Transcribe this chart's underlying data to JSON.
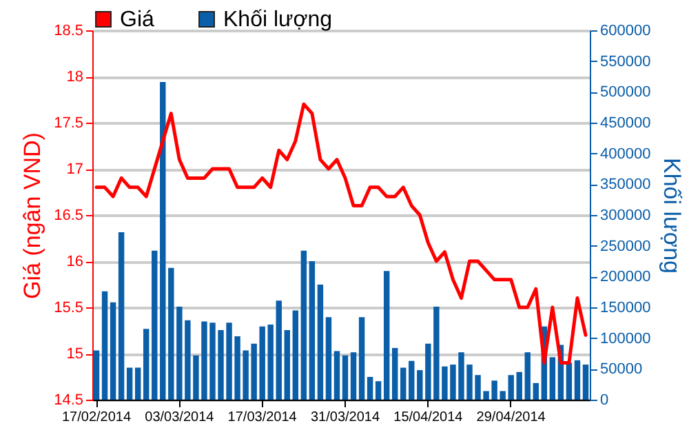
{
  "chart_data": {
    "type": "bar",
    "ylabel": "Giá (ngân VND)",
    "y2label": "Khối lượng",
    "categories": [
      "17/02/2014",
      null,
      null,
      null,
      null,
      null,
      null,
      null,
      null,
      null,
      "03/03/2014",
      null,
      null,
      null,
      null,
      null,
      null,
      null,
      null,
      null,
      "17/03/2014",
      null,
      null,
      null,
      null,
      null,
      null,
      null,
      null,
      null,
      "31/03/2014",
      null,
      null,
      null,
      null,
      null,
      null,
      null,
      null,
      null,
      "15/04/2014",
      null,
      null,
      null,
      null,
      null,
      null,
      null,
      null,
      null,
      "29/04/2014",
      null,
      null,
      null,
      null,
      null,
      null,
      null,
      null,
      null
    ],
    "series": [
      {
        "name": "Giá",
        "type": "line",
        "axis": "y",
        "color": "#ff0000",
        "values": [
          16.8,
          16.8,
          16.7,
          16.9,
          16.8,
          16.8,
          16.7,
          17.0,
          17.3,
          17.6,
          17.1,
          16.9,
          16.9,
          16.9,
          17.0,
          17.0,
          17.0,
          16.8,
          16.8,
          16.8,
          16.9,
          16.8,
          17.2,
          17.1,
          17.3,
          17.7,
          17.6,
          17.1,
          17.0,
          17.1,
          16.9,
          16.6,
          16.6,
          16.8,
          16.8,
          16.7,
          16.7,
          16.8,
          16.6,
          16.5,
          16.2,
          16.0,
          16.1,
          15.8,
          15.6,
          16.0,
          16.0,
          15.9,
          15.8,
          15.8,
          15.8,
          15.5,
          15.5,
          15.7,
          14.9,
          15.5,
          14.9,
          14.9,
          15.6,
          15.2
        ]
      },
      {
        "name": "Khối lượng",
        "axis": "y2",
        "color": "#0b5ea8",
        "values": [
          80000,
          176000,
          158000,
          272000,
          52000,
          52000,
          115000,
          242000,
          516000,
          214000,
          151000,
          129000,
          72000,
          127000,
          125000,
          113000,
          125000,
          103000,
          80000,
          91000,
          119000,
          122000,
          161000,
          113000,
          145000,
          242000,
          225000,
          187000,
          134000,
          79000,
          72000,
          77000,
          134000,
          37000,
          30000,
          209000,
          84000,
          52000,
          63000,
          48000,
          91000,
          151000,
          54000,
          57000,
          77000,
          57000,
          40000,
          14000,
          31000,
          14000,
          40000,
          45000,
          77000,
          27000,
          119000,
          69000,
          89000,
          60000,
          64000,
          57000
        ]
      }
    ],
    "ylim": [
      14.5,
      18.5
    ],
    "yticks": [
      14.5,
      15,
      15.5,
      16,
      16.5,
      17,
      17.5,
      18,
      18.5
    ],
    "y2lim": [
      0,
      600000
    ],
    "y2ticks": [
      0,
      50000,
      100000,
      150000,
      200000,
      250000,
      300000,
      350000,
      400000,
      450000,
      500000,
      550000,
      600000
    ],
    "grid": "y",
    "legend": "top left",
    "marker": "none"
  }
}
